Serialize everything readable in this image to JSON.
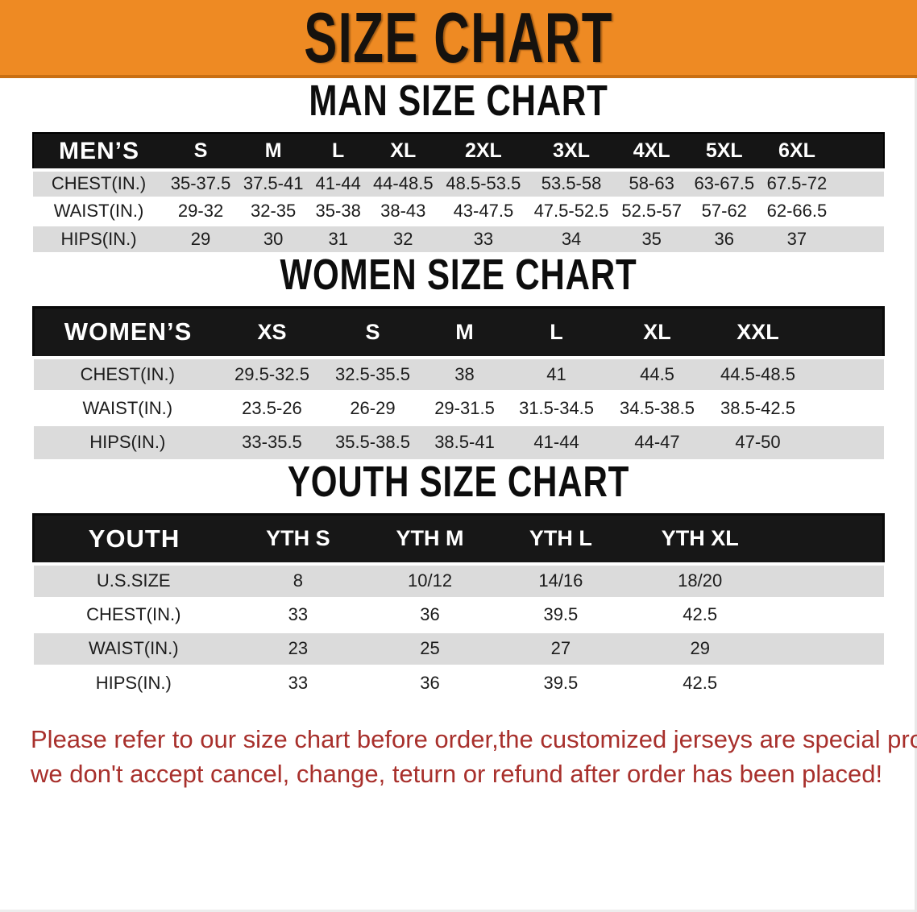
{
  "banner": {
    "title": "SIZE CHART"
  },
  "sections": {
    "men_heading": "MAN SIZE CHART",
    "women_heading": "WOMEN SIZE CHART",
    "youth_heading": "YOUTH SIZE CHART"
  },
  "chart_data": [
    {
      "id": "men",
      "type": "table",
      "title": "MAN SIZE CHART",
      "corner_label": "MEN’S",
      "columns": [
        "S",
        "M",
        "L",
        "XL",
        "2XL",
        "3XL",
        "4XL",
        "5XL",
        "6XL"
      ],
      "rows": [
        {
          "label": "CHEST(IN.)",
          "values": [
            "35-37.5",
            "37.5-41",
            "41-44",
            "44-48.5",
            "48.5-53.5",
            "53.5-58",
            "58-63",
            "63-67.5",
            "67.5-72"
          ]
        },
        {
          "label": "WAIST(IN.)",
          "values": [
            "29-32",
            "32-35",
            "35-38",
            "38-43",
            "43-47.5",
            "47.5-52.5",
            "52.5-57",
            "57-62",
            "62-66.5"
          ]
        },
        {
          "label": "HIPS(IN.)",
          "values": [
            "29",
            "30",
            "31",
            "32",
            "33",
            "34",
            "35",
            "36",
            "37"
          ]
        }
      ]
    },
    {
      "id": "women",
      "type": "table",
      "title": "WOMEN SIZE CHART",
      "corner_label": "WOMEN’S",
      "columns": [
        "XS",
        "S",
        "M",
        "L",
        "XL",
        "XXL"
      ],
      "rows": [
        {
          "label": "CHEST(IN.)",
          "values": [
            "29.5-32.5",
            "32.5-35.5",
            "38",
            "41",
            "44.5",
            "44.5-48.5"
          ]
        },
        {
          "label": "WAIST(IN.)",
          "values": [
            "23.5-26",
            "26-29",
            "29-31.5",
            "31.5-34.5",
            "34.5-38.5",
            "38.5-42.5"
          ]
        },
        {
          "label": "HIPS(IN.)",
          "values": [
            "33-35.5",
            "35.5-38.5",
            "38.5-41",
            "41-44",
            "44-47",
            "47-50"
          ]
        }
      ]
    },
    {
      "id": "youth",
      "type": "table",
      "title": "YOUTH SIZE CHART",
      "corner_label": "YOUTH",
      "columns": [
        "YTH S",
        "YTH M",
        "YTH L",
        "YTH XL"
      ],
      "rows": [
        {
          "label": "U.S.SIZE",
          "values": [
            "8",
            "10/12",
            "14/16",
            "18/20"
          ]
        },
        {
          "label": "CHEST(IN.)",
          "values": [
            "33",
            "36",
            "39.5",
            "42.5"
          ]
        },
        {
          "label": "WAIST(IN.)",
          "values": [
            "23",
            "25",
            "27",
            "29"
          ]
        },
        {
          "label": "HIPS(IN.)",
          "values": [
            "33",
            "36",
            "39.5",
            "42.5"
          ]
        }
      ]
    }
  ],
  "notice": {
    "line1": "Please refer to our size chart before order,the customized jerseys are special products,",
    "line2": "we don't accept cancel, change, teturn or refund after order has been placed!"
  },
  "colors": {
    "banner_orange": "#ee8a23",
    "banner_edge": "#c96f12",
    "header_bar": "#151515",
    "row_shade": "#dbdbdb",
    "notice_red": "#a8302c"
  }
}
